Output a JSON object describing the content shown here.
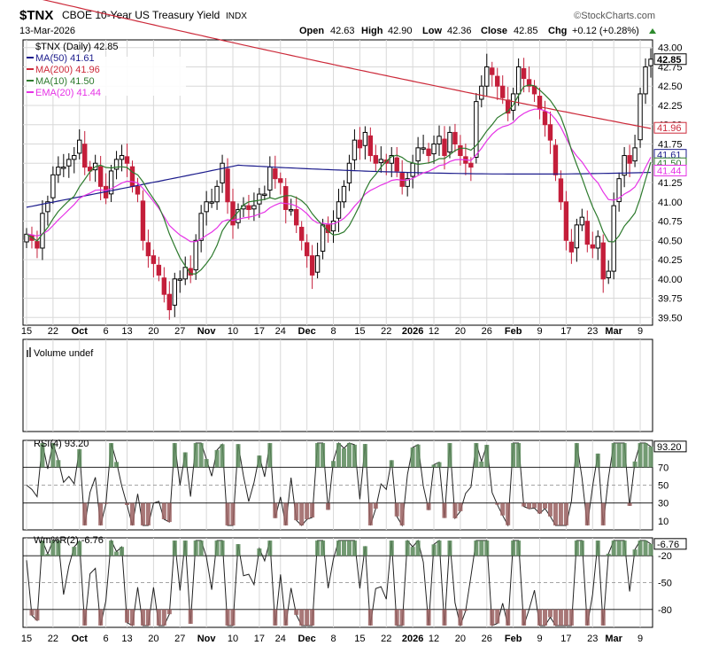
{
  "header": {
    "symbol": "$TNX",
    "description": "CBOE 10-Year US Treasury Yield",
    "exchange": "INDX",
    "date": "13-Mar-2026",
    "credit": "©StockCharts.com",
    "ohlc": {
      "open_label": "Open",
      "open": "42.63",
      "high_label": "High",
      "high": "42.90",
      "low_label": "Low",
      "low": "42.36",
      "close_label": "Close",
      "close": "42.85",
      "chg_label": "Chg",
      "chg": "+0.12 (+0.28%)"
    }
  },
  "legend": [
    {
      "text": "$TNX (Daily) 42.85",
      "color": "#000000"
    },
    {
      "text": "MA(50) 41.61",
      "color": "#1c1c8c"
    },
    {
      "text": "MA(200) 41.96",
      "color": "#cc2a3a"
    },
    {
      "text": "MA(10) 41.50",
      "color": "#2d7a2d"
    },
    {
      "text": "EMA(20) 41.44",
      "color": "#e632e6"
    }
  ],
  "price_axis": {
    "ticks": [
      "43.00",
      "42.75",
      "42.50",
      "42.25",
      "42.00",
      "41.75",
      "41.50",
      "41.25",
      "41.00",
      "40.75",
      "40.50",
      "40.25",
      "40.00",
      "39.75",
      "39.50"
    ],
    "badges": [
      {
        "text": "42.85",
        "bold": true,
        "color": "#000000"
      },
      {
        "text": "41.96",
        "bold": false,
        "color": "#cc2a3a"
      },
      {
        "text": "41.61",
        "bold": false,
        "color": "#1c1c8c"
      },
      {
        "text": "41.50",
        "bold": false,
        "color": "#2d7a2d"
      },
      {
        "text": "41.44",
        "bold": false,
        "color": "#e632e6"
      }
    ]
  },
  "x_labels": [
    "15",
    "22",
    "Oct",
    "6",
    "13",
    "20",
    "27",
    "Nov",
    "10",
    "17",
    "24",
    "Dec",
    "8",
    "15",
    "22",
    "2026",
    "12",
    "20",
    "26",
    "Feb",
    "9",
    "17",
    "23",
    "Mar",
    "9"
  ],
  "volume": {
    "label": "Volume undef"
  },
  "rsi": {
    "label": "RSI(4) 93.20",
    "value": "93.20",
    "ticks": [
      "70",
      "50",
      "30",
      "10"
    ]
  },
  "willr": {
    "label": "Wm%R(2) -6.76",
    "value": "-6.76",
    "ticks": [
      "-20",
      "-50",
      "-80"
    ]
  },
  "chart_data": {
    "type": "candlestick",
    "title": "$TNX CBOE 10-Year US Treasury Yield INDX",
    "ylim": [
      39.4,
      43.1
    ],
    "series": [
      {
        "name": "$TNX (Daily) 42.85",
        "values": [
          40.58,
          40.5,
          40.4,
          40.85,
          41.0,
          41.35,
          41.45,
          41.45,
          41.55,
          41.6,
          41.8,
          41.45,
          41.4,
          41.5,
          41.2,
          41.05,
          41.4,
          41.55,
          41.6,
          41.5,
          41.2,
          41.1,
          40.5,
          40.3,
          40.2,
          40.05,
          39.8,
          39.6,
          40.0,
          40.0,
          40.15,
          40.05,
          40.5,
          40.85,
          41.0,
          41.0,
          41.2,
          41.5,
          41.0,
          40.7,
          40.9,
          40.95,
          40.9,
          40.95,
          41.1,
          41.1,
          41.45,
          41.3,
          41.25,
          40.9,
          40.9,
          40.7,
          40.5,
          40.3,
          40.05,
          40.3,
          40.7,
          40.6,
          40.75,
          41.0,
          41.2,
          41.5,
          41.8,
          41.7,
          41.9,
          41.6,
          41.5,
          41.55,
          41.5,
          41.6,
          41.4,
          41.2,
          41.3,
          41.5,
          41.7,
          41.7,
          41.6,
          41.75,
          41.85,
          41.6,
          41.9,
          41.75,
          41.6,
          41.5,
          41.45,
          42.3,
          42.5,
          42.75,
          42.65,
          42.5,
          42.35,
          42.15,
          42.4,
          42.75,
          42.6,
          42.5,
          42.4,
          42.2,
          42.0,
          41.8,
          41.35,
          41.0,
          40.5,
          40.35,
          40.7,
          40.8,
          40.45,
          40.4,
          40.55,
          40.0,
          40.1,
          40.95,
          41.3,
          41.6,
          41.5,
          41.7,
          42.4,
          42.75,
          42.85
        ]
      },
      {
        "name": "MA(50) 41.61",
        "values": [
          41.61
        ]
      },
      {
        "name": "MA(200) 41.96",
        "values": [
          41.96
        ]
      },
      {
        "name": "MA(10) 41.50",
        "values": [
          41.5
        ]
      },
      {
        "name": "EMA(20) 41.44",
        "values": [
          41.44
        ]
      }
    ],
    "x_ticks": [
      "15",
      "22",
      "Oct",
      "6",
      "13",
      "20",
      "27",
      "Nov",
      "10",
      "17",
      "24",
      "Dec",
      "8",
      "15",
      "22",
      "2026",
      "12",
      "20",
      "26",
      "Feb",
      "9",
      "17",
      "23",
      "Mar",
      "9"
    ],
    "grid": true,
    "legend": "top-left"
  }
}
